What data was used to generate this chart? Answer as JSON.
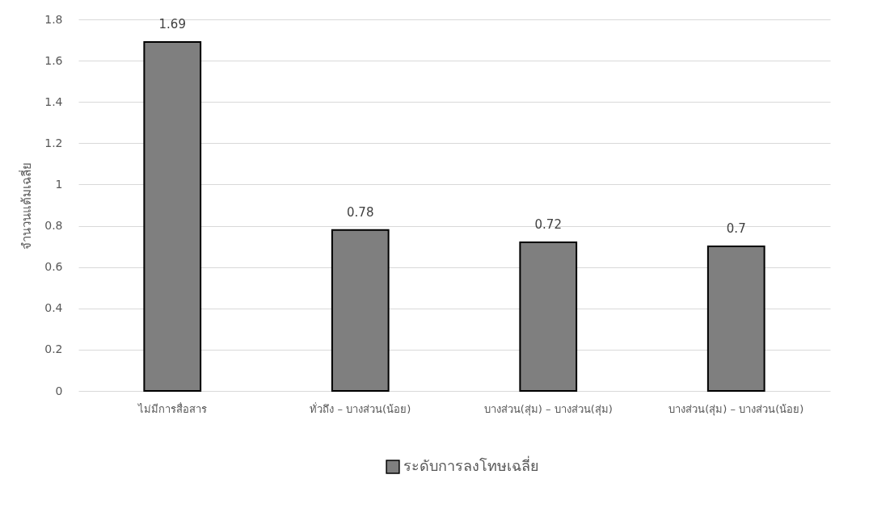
{
  "chart_data": {
    "type": "bar",
    "ylabel": "จำนวนแต้มเฉลี่ย",
    "categories": [
      "ไม่มีการสื่อสาร",
      "ทั่วถึง – บางส่วน(น้อย)",
      "บางส่วน(สุ่ม) – บางส่วน(สุ่ม)",
      "บางส่วน(สุ่ม) – บางส่วน(น้อย)"
    ],
    "series": [
      {
        "name": "ระดับการลงโทษเฉลี่ย",
        "color": "#7f7f7f",
        "values": [
          1.69,
          0.78,
          0.72,
          0.7
        ]
      }
    ],
    "ylim": [
      0,
      1.8
    ],
    "yticks": [
      0,
      0.2,
      0.4,
      0.6,
      0.8,
      1,
      1.2,
      1.4,
      1.6,
      1.8
    ],
    "grid": "y",
    "legend": "bottom",
    "data_labels": true
  }
}
